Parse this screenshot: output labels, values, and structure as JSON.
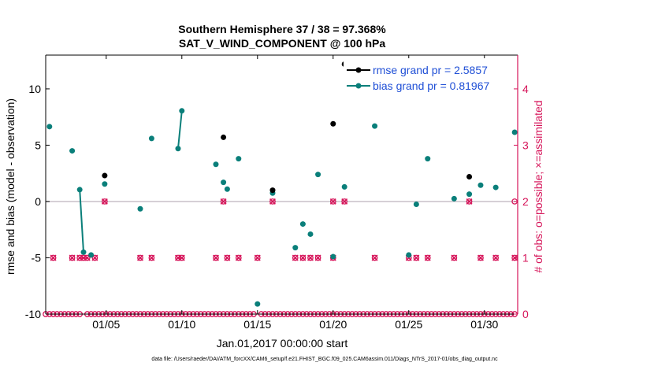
{
  "chart_data": {
    "type": "scatter",
    "title": "Southern Hemisphere 37 / 38 = 97.368%",
    "subtitle": "SAT_V_WIND_COMPONENT @ 100 hPa",
    "xlabel": "Jan.01,2017 00:00:00 start",
    "ylabel": "rmse and bias (model - observation)",
    "y2label": "# of obs: o=possible; ×=assimilated",
    "footer": "data file: /Users/raeder/DAI/ATM_forcXX/CAM6_setup/f.e21.FHIST_BGC.f09_025.CAM6assim.011/Diags_NTrS_2017-01/obs_diag_output.nc",
    "xlim": [
      1,
      32.2
    ],
    "ylim": [
      -10,
      13
    ],
    "y2lim": [
      0,
      4.6
    ],
    "x_ticks": [
      5,
      10,
      15,
      20,
      25,
      30
    ],
    "x_tick_labels": [
      "01/05",
      "01/10",
      "01/15",
      "01/20",
      "01/25",
      "01/30"
    ],
    "y_ticks": [
      -10,
      -5,
      0,
      5,
      10
    ],
    "y_tick_labels": [
      "-10",
      "-5",
      "0",
      "5",
      "10"
    ],
    "y2_ticks": [
      0,
      1,
      2,
      3,
      4
    ],
    "y2_tick_labels": [
      "0",
      "1",
      "2",
      "3",
      "4"
    ],
    "grid": false,
    "legend_position": "top-right",
    "colors": {
      "rmse": "#000000",
      "bias": "#0a7f7a",
      "obs": "#d6155a",
      "zero_line": "#c8c0c8",
      "legend_text": "#1f4fd6"
    },
    "series": [
      {
        "name": "rmse grand pr = 2.5857",
        "axis": "left",
        "points": [
          [
            4.9,
            2.3
          ],
          [
            12.75,
            5.7
          ],
          [
            16.0,
            1.0
          ],
          [
            20.0,
            6.9
          ],
          [
            20.75,
            12.2
          ],
          [
            29.0,
            2.2
          ]
        ]
      },
      {
        "name": "bias grand pr = 0.81967",
        "axis": "left",
        "points": [
          [
            1.25,
            6.65
          ],
          [
            2.75,
            4.5
          ],
          [
            3.25,
            1.05
          ],
          [
            3.5,
            -4.5
          ],
          [
            4.0,
            -4.75
          ],
          [
            4.9,
            1.55
          ],
          [
            7.25,
            -0.65
          ],
          [
            8.0,
            5.6
          ],
          [
            9.75,
            4.7
          ],
          [
            10.0,
            8.05
          ],
          [
            12.25,
            3.3
          ],
          [
            12.75,
            1.7
          ],
          [
            13.0,
            1.1
          ],
          [
            13.75,
            3.8
          ],
          [
            15.0,
            -9.1
          ],
          [
            16.0,
            0.75
          ],
          [
            17.5,
            -4.1
          ],
          [
            18.0,
            -2.0
          ],
          [
            18.5,
            -2.9
          ],
          [
            19.0,
            2.4
          ],
          [
            20.0,
            -4.9
          ],
          [
            20.75,
            1.3
          ],
          [
            22.75,
            6.7
          ],
          [
            25.0,
            -4.75
          ],
          [
            25.5,
            -0.25
          ],
          [
            26.25,
            3.8
          ],
          [
            28.0,
            0.25
          ],
          [
            29.0,
            0.65
          ],
          [
            29.75,
            1.45
          ],
          [
            30.75,
            1.25
          ],
          [
            32.0,
            6.15
          ]
        ],
        "connected_segments": [
          [
            3.25,
            3.5
          ],
          [
            9.75,
            10.0
          ]
        ]
      },
      {
        "name": "possible obs count",
        "axis": "right",
        "marker": "circle",
        "points": [
          [
            1.0,
            0
          ],
          [
            1.25,
            0
          ],
          [
            1.5,
            0
          ],
          [
            1.75,
            0
          ],
          [
            2.0,
            0
          ],
          [
            2.25,
            0
          ],
          [
            2.5,
            0
          ],
          [
            2.75,
            0
          ],
          [
            3.0,
            0
          ],
          [
            3.25,
            0
          ],
          [
            3.75,
            0
          ],
          [
            4.0,
            0
          ],
          [
            4.25,
            0
          ],
          [
            4.5,
            0
          ],
          [
            4.75,
            0
          ],
          [
            5.0,
            0
          ],
          [
            5.25,
            0
          ],
          [
            5.5,
            0
          ],
          [
            5.75,
            0
          ],
          [
            6.0,
            0
          ],
          [
            6.25,
            0
          ],
          [
            6.5,
            0
          ],
          [
            6.75,
            0
          ],
          [
            7.0,
            0
          ],
          [
            7.25,
            0
          ],
          [
            7.5,
            0
          ],
          [
            7.75,
            0
          ],
          [
            8.0,
            0
          ],
          [
            8.25,
            0
          ],
          [
            8.5,
            0
          ],
          [
            8.75,
            0
          ],
          [
            9.0,
            0
          ],
          [
            9.25,
            0
          ],
          [
            9.5,
            0
          ],
          [
            9.75,
            0
          ],
          [
            10.0,
            0
          ],
          [
            10.25,
            0
          ],
          [
            10.5,
            0
          ],
          [
            10.75,
            0
          ],
          [
            11.0,
            0
          ],
          [
            11.25,
            0
          ],
          [
            11.5,
            0
          ],
          [
            11.75,
            0
          ],
          [
            12.0,
            0
          ],
          [
            12.25,
            0
          ],
          [
            12.5,
            0
          ],
          [
            12.75,
            0
          ],
          [
            13.0,
            0
          ],
          [
            13.25,
            0
          ],
          [
            13.5,
            0
          ],
          [
            13.75,
            0
          ],
          [
            14.0,
            0
          ],
          [
            14.25,
            0
          ],
          [
            14.5,
            0
          ],
          [
            14.75,
            0
          ],
          [
            15.25,
            0
          ],
          [
            15.5,
            0
          ],
          [
            15.75,
            0
          ],
          [
            16.0,
            0
          ],
          [
            16.25,
            0
          ],
          [
            16.5,
            0
          ],
          [
            16.75,
            0
          ],
          [
            17.0,
            0
          ],
          [
            17.25,
            0
          ],
          [
            17.5,
            0
          ],
          [
            17.75,
            0
          ],
          [
            18.0,
            0
          ],
          [
            18.25,
            0
          ],
          [
            18.5,
            0
          ],
          [
            18.75,
            0
          ],
          [
            19.0,
            0
          ],
          [
            19.25,
            0
          ],
          [
            19.5,
            0
          ],
          [
            19.75,
            0
          ],
          [
            20.0,
            0
          ],
          [
            20.25,
            0
          ],
          [
            20.5,
            0
          ],
          [
            20.75,
            0
          ],
          [
            21.0,
            0
          ],
          [
            21.25,
            0
          ],
          [
            21.5,
            0
          ],
          [
            21.75,
            0
          ],
          [
            22.0,
            0
          ],
          [
            22.25,
            0
          ],
          [
            22.5,
            0
          ],
          [
            22.75,
            0
          ],
          [
            23.0,
            0
          ],
          [
            23.25,
            0
          ],
          [
            23.5,
            0
          ],
          [
            23.75,
            0
          ],
          [
            24.0,
            0
          ],
          [
            24.25,
            0
          ],
          [
            24.5,
            0
          ],
          [
            24.75,
            0
          ],
          [
            25.0,
            0
          ],
          [
            25.25,
            0
          ],
          [
            25.5,
            0
          ],
          [
            25.75,
            0
          ],
          [
            26.0,
            0
          ],
          [
            26.25,
            0
          ],
          [
            26.5,
            0
          ],
          [
            26.75,
            0
          ],
          [
            27.0,
            0
          ],
          [
            27.25,
            0
          ],
          [
            27.5,
            0
          ],
          [
            27.75,
            0
          ],
          [
            28.0,
            0
          ],
          [
            28.25,
            0
          ],
          [
            28.5,
            0
          ],
          [
            28.75,
            0
          ],
          [
            29.0,
            0
          ],
          [
            29.25,
            0
          ],
          [
            29.5,
            0
          ],
          [
            29.75,
            0
          ],
          [
            30.0,
            0
          ],
          [
            30.25,
            0
          ],
          [
            30.5,
            0
          ],
          [
            30.75,
            0
          ],
          [
            31.0,
            0
          ],
          [
            31.25,
            0
          ],
          [
            31.5,
            0
          ],
          [
            31.75,
            0
          ],
          [
            32.0,
            0
          ],
          [
            1.5,
            1
          ],
          [
            2.75,
            1
          ],
          [
            3.25,
            1
          ],
          [
            3.5,
            1
          ],
          [
            3.75,
            1
          ],
          [
            4.25,
            1
          ],
          [
            7.25,
            1
          ],
          [
            8.0,
            1
          ],
          [
            9.75,
            1
          ],
          [
            10.0,
            1
          ],
          [
            12.25,
            1
          ],
          [
            13.0,
            1
          ],
          [
            13.75,
            1
          ],
          [
            15.0,
            1
          ],
          [
            17.5,
            1
          ],
          [
            18.0,
            1
          ],
          [
            18.5,
            1
          ],
          [
            19.0,
            1
          ],
          [
            20.0,
            1
          ],
          [
            22.75,
            1
          ],
          [
            25.0,
            1
          ],
          [
            25.5,
            1
          ],
          [
            26.25,
            1
          ],
          [
            28.0,
            1
          ],
          [
            29.75,
            1
          ],
          [
            30.75,
            1
          ],
          [
            32.0,
            1
          ],
          [
            4.9,
            2
          ],
          [
            12.75,
            2
          ],
          [
            16.0,
            2
          ],
          [
            20.0,
            2
          ],
          [
            20.75,
            2
          ],
          [
            29.0,
            2
          ],
          [
            32.0,
            2
          ]
        ]
      },
      {
        "name": "assimilated obs count",
        "axis": "right",
        "marker": "x",
        "points": [
          [
            1.5,
            1
          ],
          [
            2.75,
            1
          ],
          [
            3.25,
            1
          ],
          [
            3.5,
            1
          ],
          [
            3.75,
            1
          ],
          [
            4.25,
            1
          ],
          [
            7.25,
            1
          ],
          [
            8.0,
            1
          ],
          [
            9.75,
            1
          ],
          [
            10.0,
            1
          ],
          [
            12.25,
            1
          ],
          [
            13.0,
            1
          ],
          [
            13.75,
            1
          ],
          [
            15.0,
            1
          ],
          [
            17.5,
            1
          ],
          [
            18.0,
            1
          ],
          [
            18.5,
            1
          ],
          [
            19.0,
            1
          ],
          [
            20.0,
            1
          ],
          [
            22.75,
            1
          ],
          [
            25.0,
            1
          ],
          [
            25.5,
            1
          ],
          [
            26.25,
            1
          ],
          [
            28.0,
            1
          ],
          [
            29.75,
            1
          ],
          [
            30.75,
            1
          ],
          [
            32.0,
            1
          ],
          [
            4.9,
            2
          ],
          [
            12.75,
            2
          ],
          [
            16.0,
            2
          ],
          [
            20.0,
            2
          ],
          [
            20.75,
            2
          ],
          [
            29.0,
            2
          ]
        ]
      }
    ]
  }
}
